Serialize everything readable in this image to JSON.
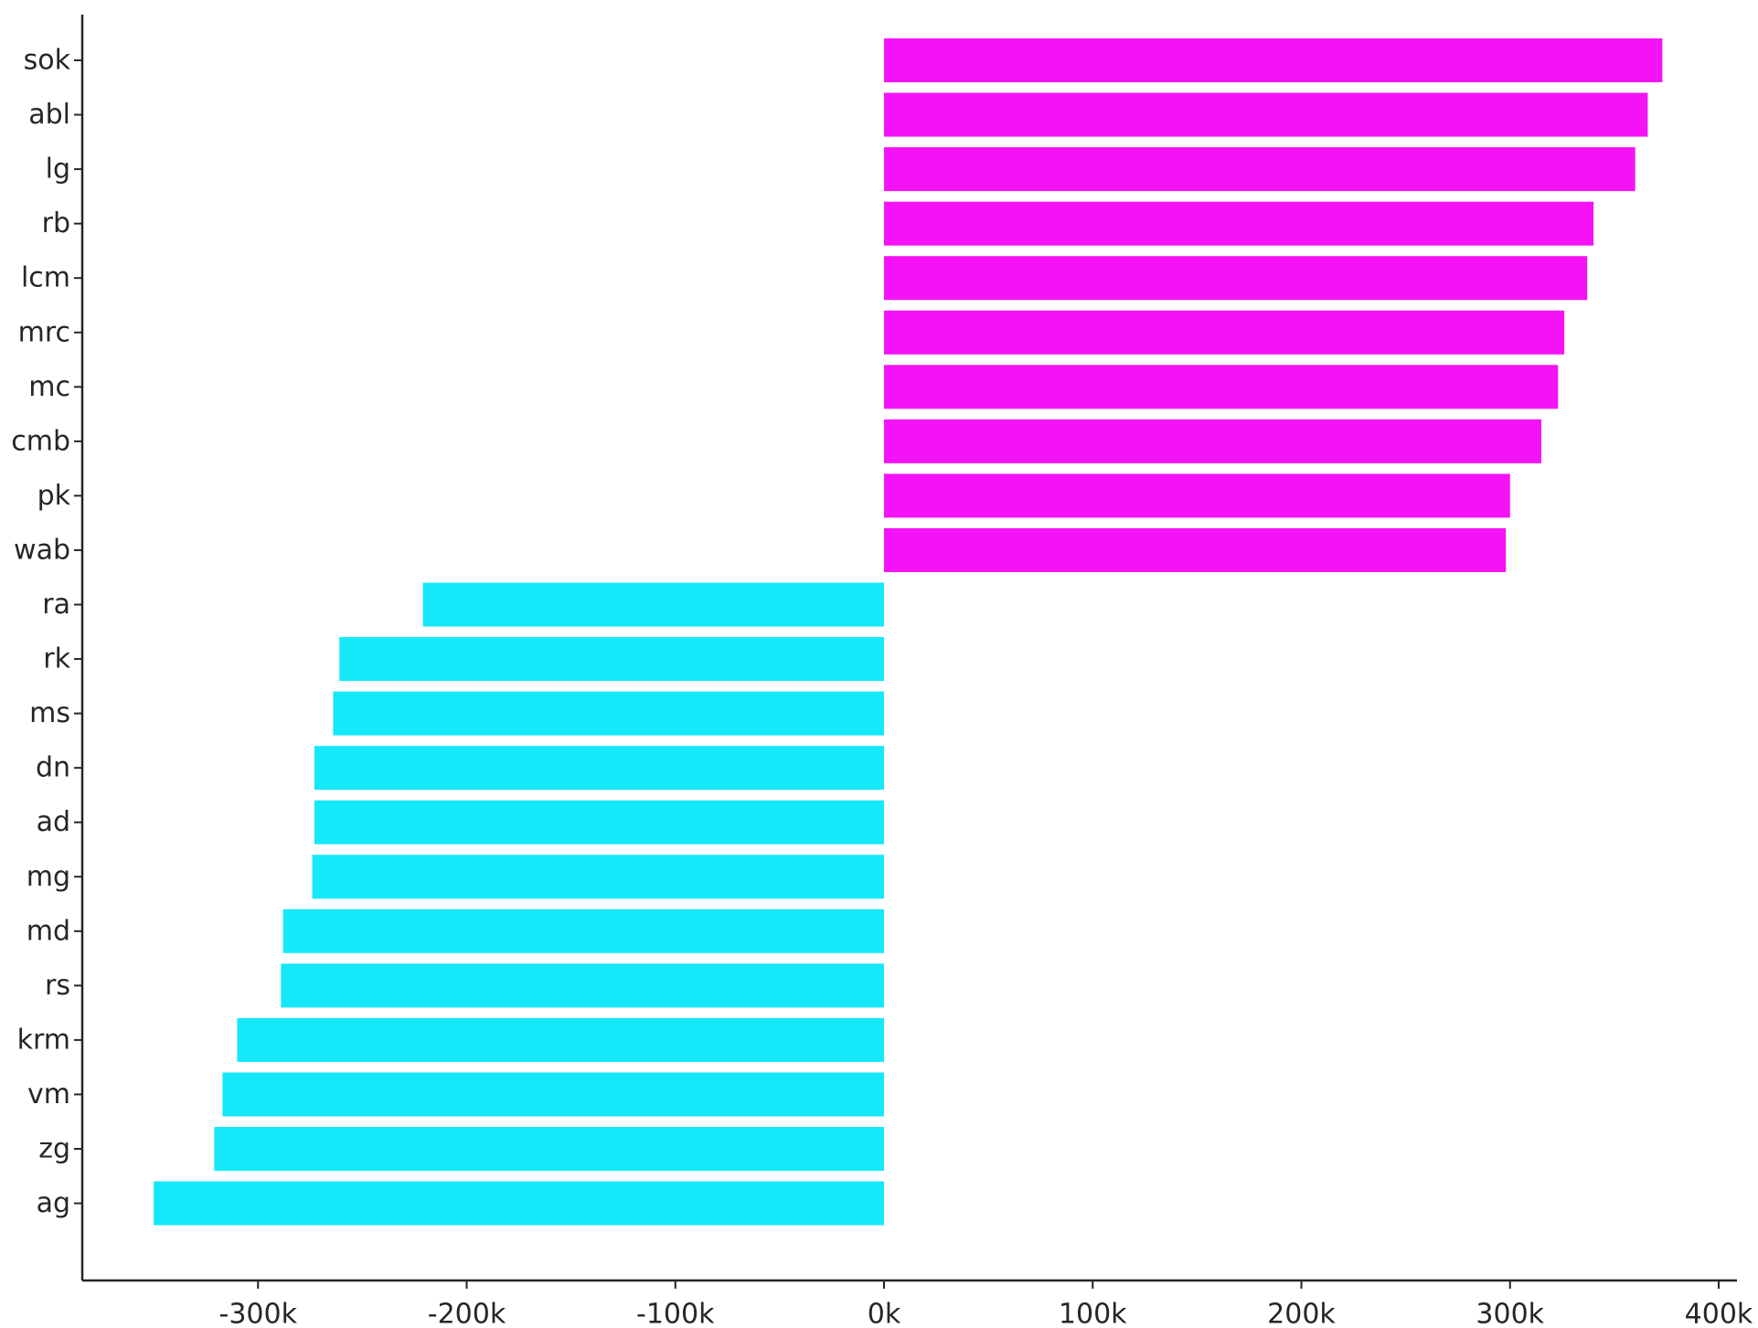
{
  "chart_data": {
    "type": "bar",
    "orientation": "horizontal",
    "title": "",
    "xlabel": "",
    "ylabel": "",
    "categories": [
      "sok",
      "abl",
      "lg",
      "rb",
      "lcm",
      "mrc",
      "mc",
      "cmb",
      "pk",
      "wab",
      "ra",
      "rk",
      "ms",
      "dn",
      "ad",
      "mg",
      "md",
      "rs",
      "krm",
      "vm",
      "zg",
      "ag"
    ],
    "values": [
      373000,
      366000,
      360000,
      340000,
      337000,
      326000,
      323000,
      315000,
      300000,
      298000,
      -221000,
      -261000,
      -264000,
      -273000,
      -273000,
      -274000,
      -288000,
      -289000,
      -310000,
      -317000,
      -321000,
      -350000
    ],
    "colors": {
      "positive": "#f512f7",
      "negative": "#14e8f9"
    },
    "xlim": [
      -385000,
      410000
    ],
    "xticks": [
      -300000,
      -200000,
      -100000,
      0,
      100000,
      200000,
      300000,
      400000
    ],
    "xtick_labels": [
      "-300k",
      "-200k",
      "-100k",
      "0k",
      "100k",
      "200k",
      "300k",
      "400k"
    ],
    "grid": false,
    "legend": "none"
  }
}
